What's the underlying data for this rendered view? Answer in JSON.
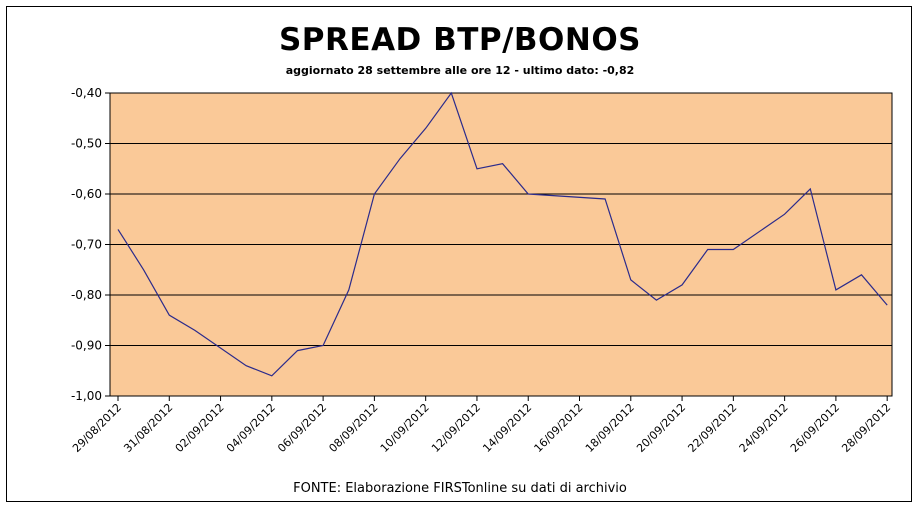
{
  "chart_data": {
    "type": "line",
    "title": "SPREAD BTP/BONOS",
    "subtitle": "aggiornato 28 settembre alle ore 12 - ultimo dato: -0,82",
    "footer": "FONTE: Elaborazione FIRSTonline su dati di archivio",
    "ylim": [
      -1.0,
      -0.4
    ],
    "yticks": [
      -0.4,
      -0.5,
      -0.6,
      -0.7,
      -0.8,
      -0.9,
      -1.0
    ],
    "ytick_labels": [
      "-0,40",
      "-0,50",
      "-0,60",
      "-0,70",
      "-0,80",
      "-0,90",
      "-1,00"
    ],
    "xtick_labels": [
      "29/08/2012",
      "31/08/2012",
      "02/09/2012",
      "04/09/2012",
      "06/09/2012",
      "08/09/2012",
      "10/09/2012",
      "12/09/2012",
      "14/09/2012",
      "16/09/2012",
      "18/09/2012",
      "20/09/2012",
      "22/09/2012",
      "24/09/2012",
      "26/09/2012",
      "28/09/2012"
    ],
    "grid": "horizontal",
    "plot_background": "#FAC998",
    "line_color": "#2B2B8C",
    "series": [
      {
        "x": [
          "29/08/2012",
          "30/08/2012",
          "31/08/2012",
          "01/09/2012",
          "03/09/2012",
          "04/09/2012",
          "05/09/2012",
          "06/09/2012",
          "07/09/2012",
          "08/09/2012",
          "09/09/2012",
          "10/09/2012",
          "11/09/2012",
          "12/09/2012",
          "13/09/2012",
          "14/09/2012",
          "17/09/2012",
          "18/09/2012",
          "19/09/2012",
          "20/09/2012",
          "21/09/2012",
          "22/09/2012",
          "24/09/2012",
          "25/09/2012",
          "26/09/2012",
          "27/09/2012",
          "28/09/2012"
        ],
        "values": [
          -0.67,
          -0.75,
          -0.84,
          -0.87,
          -0.94,
          -0.96,
          -0.91,
          -0.9,
          -0.79,
          -0.6,
          -0.53,
          -0.47,
          -0.4,
          -0.55,
          -0.54,
          -0.6,
          -0.61,
          -0.77,
          -0.81,
          -0.78,
          -0.71,
          -0.71,
          -0.64,
          -0.59,
          -0.79,
          -0.76,
          -0.82
        ]
      }
    ]
  }
}
